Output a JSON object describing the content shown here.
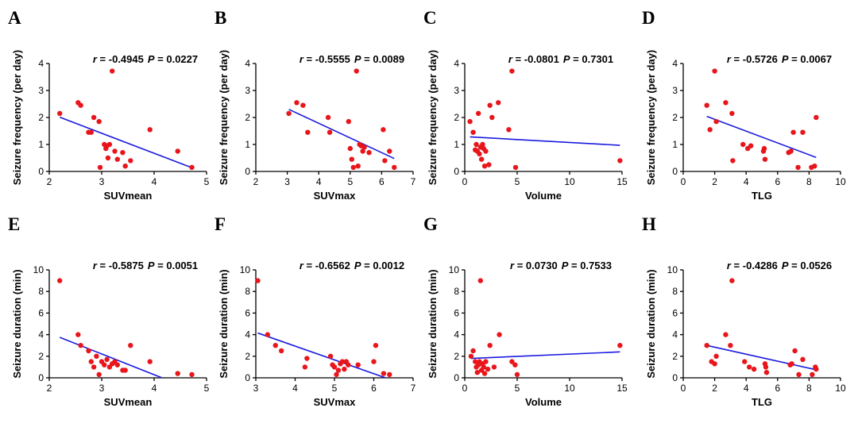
{
  "colors": {
    "points": "#e8151b",
    "regression_line": "#1a1adf",
    "axes": "#000000"
  },
  "chart_data": [
    {
      "type": "scatter",
      "panel_label": "A",
      "stat_r": "-0.4945",
      "stat_p": "0.0227",
      "xlabel": "SUVmean",
      "ylabel": "Seizure frequency (per day)",
      "xlim": [
        2,
        5
      ],
      "ylim": [
        0,
        4
      ],
      "xticks": [
        2,
        3,
        4,
        5
      ],
      "yticks": [
        0,
        1,
        2,
        3,
        4
      ],
      "points": [
        [
          2.2,
          2.15
        ],
        [
          2.55,
          2.55
        ],
        [
          2.6,
          2.45
        ],
        [
          2.75,
          1.45
        ],
        [
          2.8,
          1.45
        ],
        [
          2.85,
          2.0
        ],
        [
          2.95,
          1.85
        ],
        [
          2.97,
          0.15
        ],
        [
          3.05,
          1.0
        ],
        [
          3.08,
          0.85
        ],
        [
          3.1,
          0.95
        ],
        [
          3.12,
          0.5
        ],
        [
          3.15,
          1.0
        ],
        [
          3.2,
          3.72
        ],
        [
          3.25,
          0.75
        ],
        [
          3.3,
          0.45
        ],
        [
          3.4,
          0.7
        ],
        [
          3.45,
          0.2
        ],
        [
          3.55,
          0.4
        ],
        [
          3.92,
          1.55
        ],
        [
          4.45,
          0.75
        ],
        [
          4.72,
          0.15
        ]
      ],
      "regression": [
        [
          2.2,
          2.01
        ],
        [
          4.72,
          0.14
        ]
      ]
    },
    {
      "type": "scatter",
      "panel_label": "B",
      "stat_r": "-0.5555",
      "stat_p": "0.0089",
      "xlabel": "SUVmax",
      "ylabel": "Seizure frequency (per day)",
      "xlim": [
        2,
        7
      ],
      "ylim": [
        0,
        4
      ],
      "xticks": [
        2,
        3,
        4,
        5,
        6,
        7
      ],
      "yticks": [
        0,
        1,
        2,
        3,
        4
      ],
      "points": [
        [
          3.05,
          2.15
        ],
        [
          3.3,
          2.55
        ],
        [
          3.5,
          2.45
        ],
        [
          3.65,
          1.45
        ],
        [
          4.3,
          2.0
        ],
        [
          4.35,
          1.45
        ],
        [
          4.95,
          1.85
        ],
        [
          5.0,
          0.85
        ],
        [
          5.05,
          0.45
        ],
        [
          5.1,
          0.15
        ],
        [
          5.2,
          3.72
        ],
        [
          5.25,
          0.2
        ],
        [
          5.3,
          1.0
        ],
        [
          5.35,
          0.95
        ],
        [
          5.4,
          0.75
        ],
        [
          5.45,
          0.9
        ],
        [
          5.6,
          0.7
        ],
        [
          6.05,
          1.55
        ],
        [
          6.1,
          0.4
        ],
        [
          6.25,
          0.75
        ],
        [
          6.4,
          0.15
        ]
      ],
      "regression": [
        [
          3.05,
          2.3
        ],
        [
          6.4,
          0.48
        ]
      ]
    },
    {
      "type": "scatter",
      "panel_label": "C",
      "stat_r": "-0.0801",
      "stat_p": "0.7301",
      "xlabel": "Volume",
      "ylabel": "Seizure frequency (per day)",
      "xlim": [
        0,
        15
      ],
      "ylim": [
        0,
        4
      ],
      "xticks": [
        0,
        5,
        10,
        15
      ],
      "yticks": [
        0,
        1,
        2,
        3,
        4
      ],
      "points": [
        [
          0.5,
          1.85
        ],
        [
          0.8,
          1.45
        ],
        [
          1.0,
          0.8
        ],
        [
          1.1,
          1.0
        ],
        [
          1.2,
          0.75
        ],
        [
          1.3,
          2.15
        ],
        [
          1.4,
          0.65
        ],
        [
          1.5,
          0.9
        ],
        [
          1.6,
          0.45
        ],
        [
          1.7,
          1.0
        ],
        [
          1.8,
          0.85
        ],
        [
          1.9,
          0.2
        ],
        [
          2.0,
          0.75
        ],
        [
          2.3,
          0.25
        ],
        [
          2.4,
          2.45
        ],
        [
          2.6,
          2.0
        ],
        [
          3.2,
          2.55
        ],
        [
          4.2,
          1.55
        ],
        [
          4.5,
          3.72
        ],
        [
          4.85,
          0.15
        ],
        [
          14.8,
          0.4
        ]
      ],
      "regression": [
        [
          0.5,
          1.28
        ],
        [
          14.8,
          0.97
        ]
      ]
    },
    {
      "type": "scatter",
      "panel_label": "D",
      "stat_r": "-0.5726",
      "stat_p": "0.0067",
      "xlabel": "TLG",
      "ylabel": "Seizure frequency (per day)",
      "xlim": [
        0,
        10
      ],
      "ylim": [
        0,
        4
      ],
      "xticks": [
        0,
        2,
        4,
        6,
        8,
        10
      ],
      "yticks": [
        0,
        1,
        2,
        3,
        4
      ],
      "points": [
        [
          1.5,
          2.45
        ],
        [
          1.7,
          1.55
        ],
        [
          2.0,
          3.72
        ],
        [
          2.1,
          1.85
        ],
        [
          2.7,
          2.55
        ],
        [
          3.1,
          2.15
        ],
        [
          3.15,
          0.4
        ],
        [
          3.8,
          1.0
        ],
        [
          4.1,
          0.85
        ],
        [
          4.3,
          0.95
        ],
        [
          5.1,
          0.75
        ],
        [
          5.15,
          0.85
        ],
        [
          5.2,
          0.45
        ],
        [
          6.7,
          0.7
        ],
        [
          6.85,
          0.75
        ],
        [
          7.0,
          1.45
        ],
        [
          7.3,
          0.15
        ],
        [
          7.6,
          1.45
        ],
        [
          8.15,
          0.15
        ],
        [
          8.35,
          0.2
        ],
        [
          8.45,
          2.0
        ]
      ],
      "regression": [
        [
          1.5,
          2.04
        ],
        [
          8.45,
          0.52
        ]
      ]
    },
    {
      "type": "scatter",
      "panel_label": "E",
      "stat_r": "-0.5875",
      "stat_p": "0.0051",
      "xlabel": "SUVmean",
      "ylabel": "Seizure duration (min)",
      "xlim": [
        2,
        5
      ],
      "ylim": [
        0,
        10
      ],
      "xticks": [
        2,
        3,
        4,
        5
      ],
      "yticks": [
        0,
        2,
        4,
        6,
        8,
        10
      ],
      "points": [
        [
          2.2,
          9.0
        ],
        [
          2.55,
          4.0
        ],
        [
          2.6,
          3.0
        ],
        [
          2.75,
          2.5
        ],
        [
          2.8,
          1.5
        ],
        [
          2.85,
          1.0
        ],
        [
          2.9,
          2.0
        ],
        [
          2.95,
          0.3
        ],
        [
          3.0,
          1.5
        ],
        [
          3.05,
          1.2
        ],
        [
          3.1,
          1.7
        ],
        [
          3.15,
          1.0
        ],
        [
          3.2,
          1.3
        ],
        [
          3.25,
          1.5
        ],
        [
          3.3,
          1.2
        ],
        [
          3.4,
          0.7
        ],
        [
          3.45,
          0.7
        ],
        [
          3.55,
          3.0
        ],
        [
          3.92,
          1.5
        ],
        [
          4.45,
          0.4
        ],
        [
          4.72,
          0.3
        ]
      ],
      "regression": [
        [
          2.2,
          3.75
        ],
        [
          4.15,
          0.0
        ]
      ]
    },
    {
      "type": "scatter",
      "panel_label": "F",
      "stat_r": "-0.6562",
      "stat_p": "0.0012",
      "xlabel": "SUVmax",
      "ylabel": "Seizure duration (min)",
      "xlim": [
        3,
        7
      ],
      "ylim": [
        0,
        10
      ],
      "xticks": [
        3,
        4,
        5,
        6,
        7
      ],
      "yticks": [
        0,
        2,
        4,
        6,
        8,
        10
      ],
      "points": [
        [
          3.05,
          9.0
        ],
        [
          3.3,
          4.0
        ],
        [
          3.5,
          3.0
        ],
        [
          3.65,
          2.5
        ],
        [
          4.25,
          1.0
        ],
        [
          4.3,
          1.8
        ],
        [
          4.9,
          2.0
        ],
        [
          4.95,
          1.2
        ],
        [
          5.0,
          1.0
        ],
        [
          5.05,
          0.3
        ],
        [
          5.1,
          0.7
        ],
        [
          5.15,
          1.3
        ],
        [
          5.2,
          1.5
        ],
        [
          5.25,
          0.8
        ],
        [
          5.3,
          1.5
        ],
        [
          5.35,
          1.2
        ],
        [
          5.6,
          1.2
        ],
        [
          6.0,
          1.5
        ],
        [
          6.05,
          3.0
        ],
        [
          6.25,
          0.4
        ],
        [
          6.4,
          0.3
        ]
      ],
      "regression": [
        [
          3.05,
          4.15
        ],
        [
          6.3,
          0.0
        ]
      ]
    },
    {
      "type": "scatter",
      "panel_label": "G",
      "stat_r": "0.0730",
      "stat_p": "0.7533",
      "xlabel": "Volume",
      "ylabel": "Seizure duration (min)",
      "xlim": [
        0,
        15
      ],
      "ylim": [
        0,
        10
      ],
      "xticks": [
        0,
        5,
        10,
        15
      ],
      "yticks": [
        0,
        2,
        4,
        6,
        8,
        10
      ],
      "points": [
        [
          0.6,
          2.0
        ],
        [
          0.8,
          2.5
        ],
        [
          1.0,
          1.5
        ],
        [
          1.1,
          1.0
        ],
        [
          1.2,
          0.5
        ],
        [
          1.3,
          1.2
        ],
        [
          1.4,
          1.5
        ],
        [
          1.5,
          9.0
        ],
        [
          1.6,
          0.7
        ],
        [
          1.7,
          1.3
        ],
        [
          1.8,
          1.0
        ],
        [
          1.9,
          0.4
        ],
        [
          2.0,
          1.5
        ],
        [
          2.2,
          0.8
        ],
        [
          2.4,
          3.0
        ],
        [
          2.8,
          1.0
        ],
        [
          3.3,
          4.0
        ],
        [
          4.5,
          1.5
        ],
        [
          4.8,
          1.2
        ],
        [
          5.0,
          0.3
        ],
        [
          14.8,
          3.0
        ]
      ],
      "regression": [
        [
          0.6,
          1.8
        ],
        [
          14.8,
          2.4
        ]
      ]
    },
    {
      "type": "scatter",
      "panel_label": "H",
      "stat_r": "-0.4286",
      "stat_p": "0.0526",
      "xlabel": "TLG",
      "ylabel": "Seizure duration (min)",
      "xlim": [
        0,
        10
      ],
      "ylim": [
        0,
        10
      ],
      "xticks": [
        0,
        2,
        4,
        6,
        8,
        10
      ],
      "yticks": [
        0,
        2,
        4,
        6,
        8,
        10
      ],
      "points": [
        [
          1.5,
          3.0
        ],
        [
          1.8,
          1.5
        ],
        [
          2.0,
          1.3
        ],
        [
          2.1,
          2.0
        ],
        [
          2.7,
          4.0
        ],
        [
          3.0,
          3.0
        ],
        [
          3.1,
          9.0
        ],
        [
          3.9,
          1.5
        ],
        [
          4.2,
          1.0
        ],
        [
          4.5,
          0.8
        ],
        [
          5.2,
          1.3
        ],
        [
          5.25,
          1.0
        ],
        [
          5.3,
          0.5
        ],
        [
          6.8,
          1.2
        ],
        [
          6.9,
          1.3
        ],
        [
          7.1,
          2.5
        ],
        [
          7.35,
          0.3
        ],
        [
          7.6,
          1.7
        ],
        [
          8.2,
          0.3
        ],
        [
          8.4,
          1.0
        ],
        [
          8.45,
          0.8
        ]
      ],
      "regression": [
        [
          1.5,
          3.0
        ],
        [
          8.45,
          0.75
        ]
      ]
    }
  ]
}
